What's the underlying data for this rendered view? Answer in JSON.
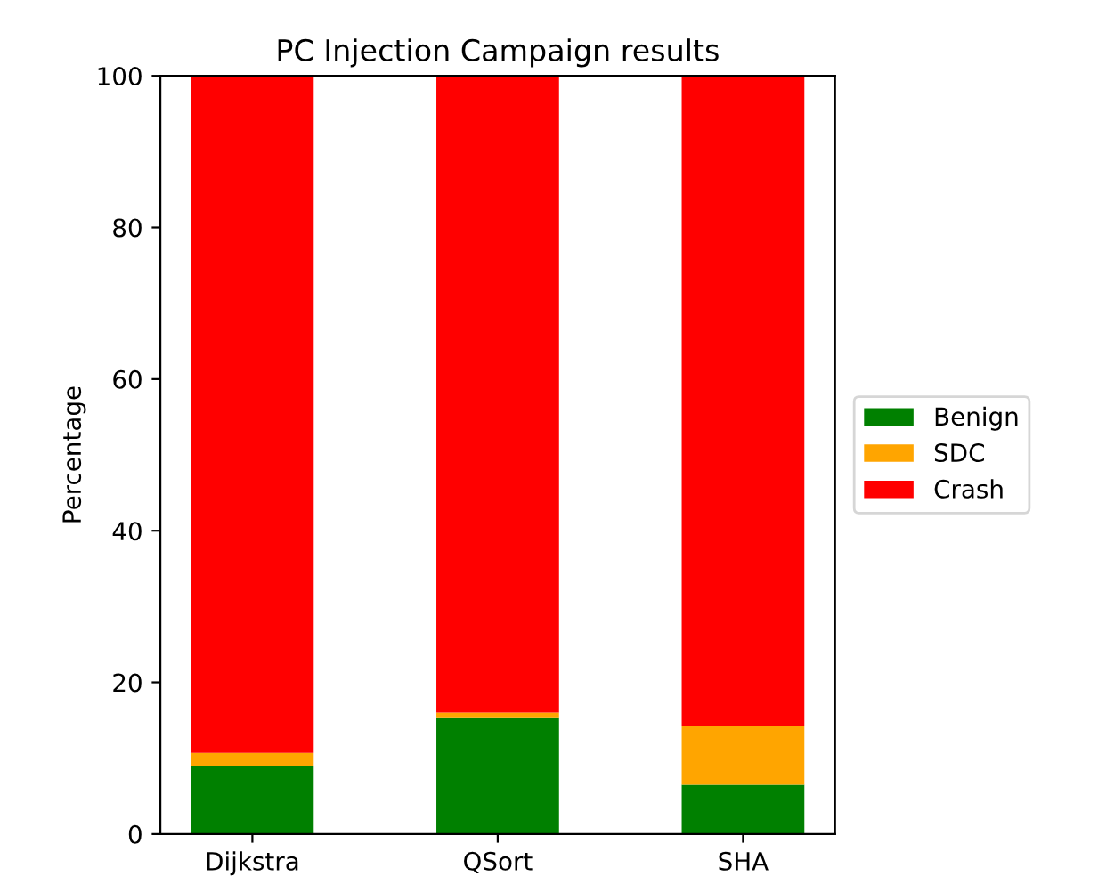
{
  "chart_data": {
    "type": "bar",
    "title": "PC Injection Campaign results",
    "ylabel": "Percentage",
    "categories": [
      "Dijkstra",
      "QSort",
      "SHA"
    ],
    "stacked": true,
    "series": [
      {
        "name": "Benign",
        "color": "#008000",
        "values": [
          8.9,
          15.4,
          6.5
        ]
      },
      {
        "name": "SDC",
        "color": "#ffa500",
        "values": [
          1.8,
          0.6,
          7.7
        ]
      },
      {
        "name": "Crash",
        "color": "#ff0000",
        "values": [
          89.3,
          84.0,
          85.8
        ]
      }
    ],
    "ylim": [
      0,
      100
    ],
    "yticks": [
      0,
      20,
      40,
      60,
      80,
      100
    ],
    "grid": false,
    "legend": "right"
  }
}
